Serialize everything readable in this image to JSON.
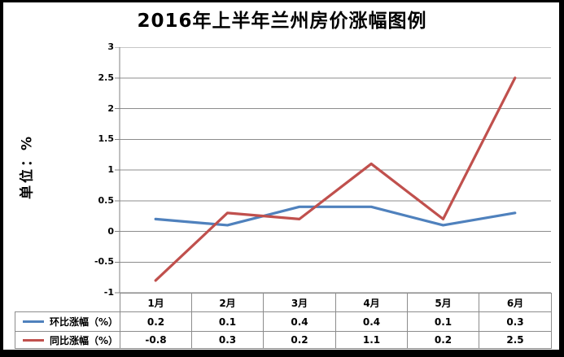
{
  "title": "2016年上半年兰州房价涨幅图例",
  "y_axis": {
    "label": "单位：%"
  },
  "colors": {
    "series1": "#4F81BD",
    "series2": "#C0504D",
    "gridline": "#8c8c8c",
    "axis": "#808080",
    "table_border": "#8c8c8c",
    "frame_border": "#000000",
    "background": "#ffffff",
    "text": "#000000"
  },
  "chart_data": {
    "type": "line",
    "title": "2016年上半年兰州房价涨幅图例",
    "ylabel": "单位：%",
    "categories": [
      "1月",
      "2月",
      "3月",
      "4月",
      "5月",
      "6月"
    ],
    "series": [
      {
        "name": "环比涨幅（%）",
        "color": "#4F81BD",
        "values": [
          0.2,
          0.1,
          0.4,
          0.4,
          0.1,
          0.3
        ]
      },
      {
        "name": "同比涨幅（%）",
        "color": "#C0504D",
        "values": [
          -0.8,
          0.3,
          0.2,
          1.1,
          0.2,
          2.5
        ]
      }
    ],
    "ylim": [
      -1,
      3
    ],
    "yticks": [
      3,
      2.5,
      2,
      1.5,
      1,
      0.5,
      0,
      -0.5,
      -1
    ],
    "grid": true,
    "legend_position": "data-table-with-legend-keys"
  }
}
